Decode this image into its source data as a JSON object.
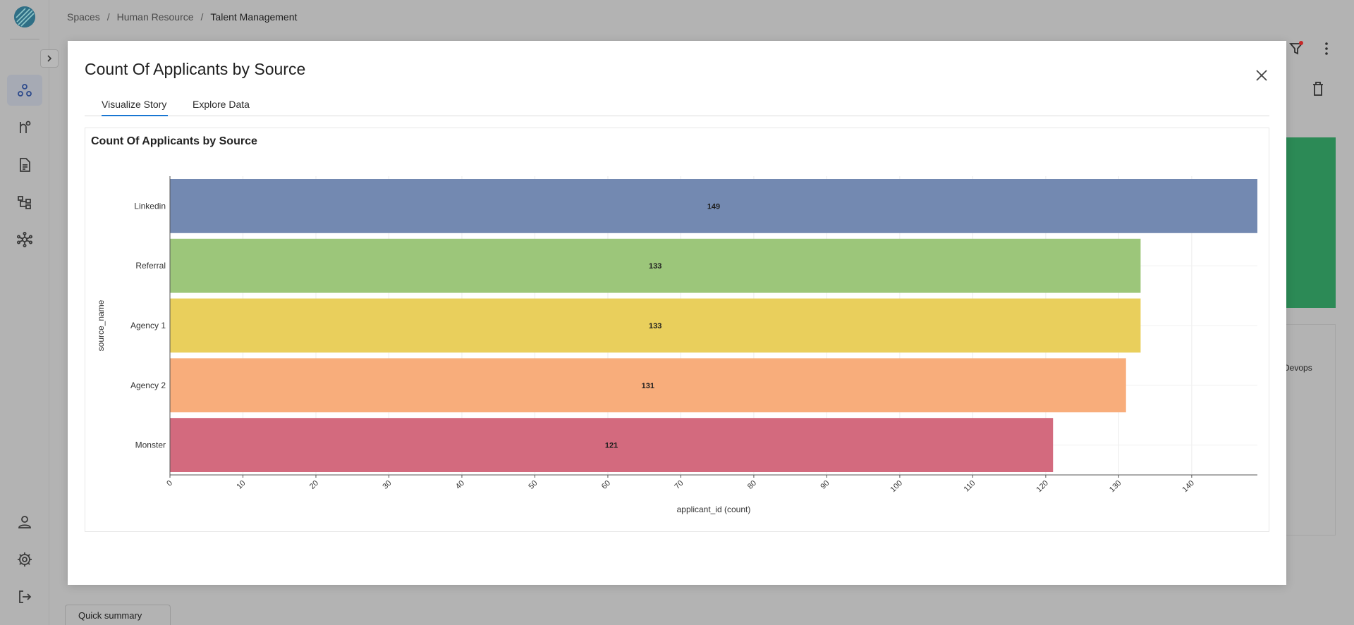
{
  "breadcrumb": {
    "spaces": "Spaces",
    "separator": "/",
    "space": "Human Resource",
    "current": "Talent Management"
  },
  "sidebar": {
    "items": [
      {
        "icon": "nodes-icon",
        "active": true
      },
      {
        "icon": "pipeline-icon",
        "active": false
      },
      {
        "icon": "document-icon",
        "active": false
      },
      {
        "icon": "hierarchy-icon",
        "active": false
      },
      {
        "icon": "network-icon",
        "active": false
      }
    ],
    "bottom": [
      "user-icon",
      "gear-icon",
      "logout-icon"
    ]
  },
  "background": {
    "devops_label": "Devops",
    "quick_summary": "Quick summary"
  },
  "modal": {
    "title": "Count Of Applicants by Source",
    "tabs": [
      {
        "label": "Visualize Story",
        "active": true
      },
      {
        "label": "Explore Data",
        "active": false
      }
    ]
  },
  "chart_data": {
    "type": "bar",
    "orientation": "horizontal",
    "title": "Count Of Applicants by Source",
    "xlabel": "applicant_id (count)",
    "ylabel": "source_name",
    "categories": [
      "Linkedin",
      "Referral",
      "Agency 1",
      "Agency 2",
      "Monster"
    ],
    "values": [
      149,
      133,
      133,
      131,
      121
    ],
    "colors": [
      "#7389b1",
      "#9cc67a",
      "#e9cf5c",
      "#f8ad7b",
      "#d36a7e"
    ],
    "xlim": [
      0,
      149
    ],
    "xticks": [
      0,
      10,
      20,
      30,
      40,
      50,
      60,
      70,
      80,
      90,
      100,
      110,
      120,
      130,
      140
    ],
    "grid": true,
    "data_labels": true
  }
}
